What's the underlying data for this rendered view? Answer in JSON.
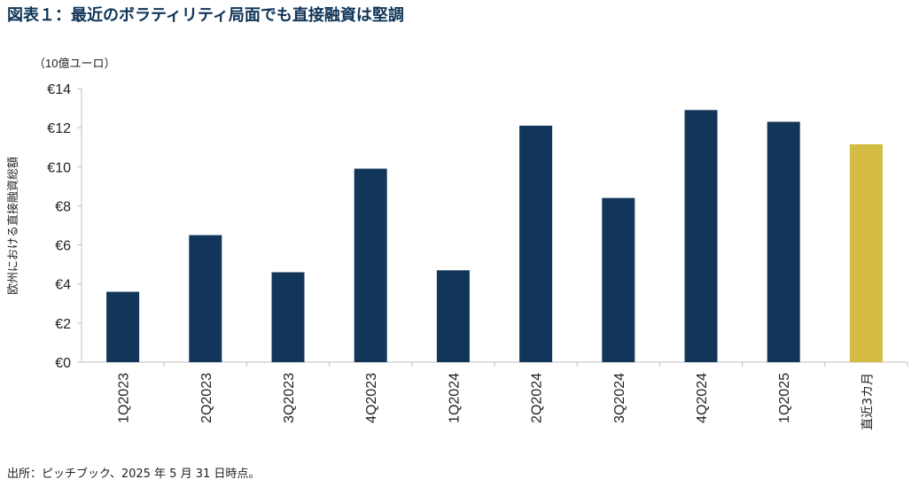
{
  "figure_title": "図表１：最近のボラティリティ局面でも直接融資は堅調",
  "source_note": "出所：ピッチブック、2025 年 5 月 31 日時点。",
  "colors": {
    "title": "#0f3457",
    "bar_primary": "#12365a",
    "bar_highlight": "#d3bc41",
    "axis": "#bfbfbf",
    "text": "#222222"
  },
  "chart_data": {
    "type": "bar",
    "title": "",
    "unit_label": "（10億ユーロ）",
    "xlabel": "",
    "ylabel": "欧州における直接融資総額",
    "ylim": [
      0,
      14
    ],
    "yticks": [
      0,
      2,
      4,
      6,
      8,
      10,
      12,
      14
    ],
    "ytick_labels": [
      "€0",
      "€2",
      "€4",
      "€6",
      "€8",
      "€10",
      "€12",
      "€14"
    ],
    "grid": false,
    "categories": [
      "1Q2023",
      "2Q2023",
      "3Q2023",
      "4Q2023",
      "1Q2024",
      "2Q2024",
      "3Q2024",
      "4Q2024",
      "1Q2025",
      "直近3カ月"
    ],
    "values": [
      3.6,
      6.5,
      4.6,
      9.9,
      4.7,
      12.1,
      8.4,
      12.9,
      12.3,
      11.15
    ],
    "highlight_index": 9
  }
}
